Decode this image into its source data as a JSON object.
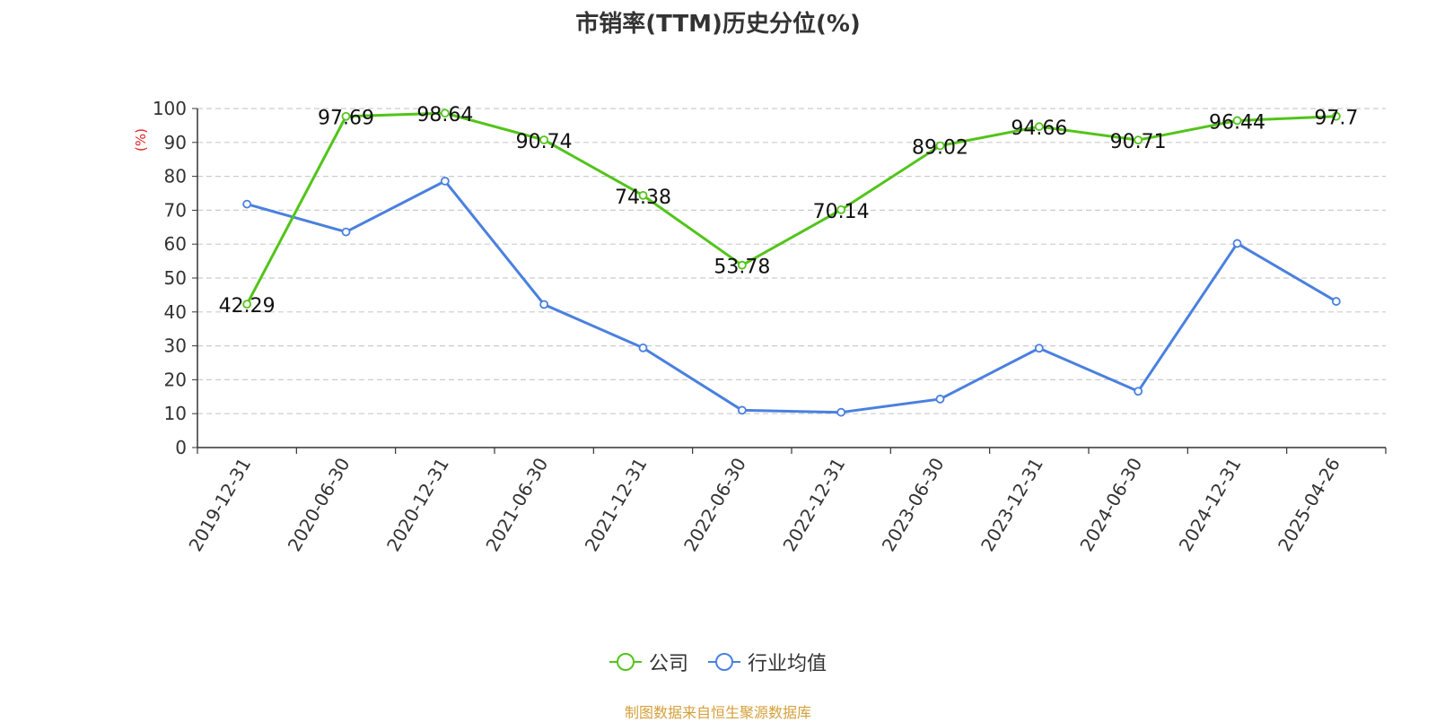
{
  "chart_data": {
    "type": "line",
    "title": "市销率(TTM)历史分位(%)",
    "ylabel": "(%)",
    "ylim": [
      0,
      100
    ],
    "yticks": [
      0,
      10,
      20,
      30,
      40,
      50,
      60,
      70,
      80,
      90,
      100
    ],
    "categories": [
      "2019-12-31",
      "2020-06-30",
      "2020-12-31",
      "2021-06-30",
      "2021-12-31",
      "2022-06-30",
      "2022-12-31",
      "2023-06-30",
      "2023-12-31",
      "2024-06-30",
      "2024-12-31",
      "2025-04-26"
    ],
    "grid": true,
    "legend_position": "bottom-center",
    "series": [
      {
        "name": "公司",
        "color": "#52c41a",
        "show_labels": true,
        "values": [
          42.29,
          97.69,
          98.64,
          90.74,
          74.38,
          53.78,
          70.14,
          89.02,
          94.66,
          90.71,
          96.44,
          97.7
        ]
      },
      {
        "name": "行业均值",
        "color": "#4a80e0",
        "show_labels": false,
        "values": [
          71.8,
          63.6,
          78.6,
          42.2,
          29.4,
          11.0,
          10.4,
          14.3,
          29.3,
          16.6,
          60.2,
          43.1
        ]
      }
    ],
    "source": "制图数据来自恒生聚源数据库"
  }
}
